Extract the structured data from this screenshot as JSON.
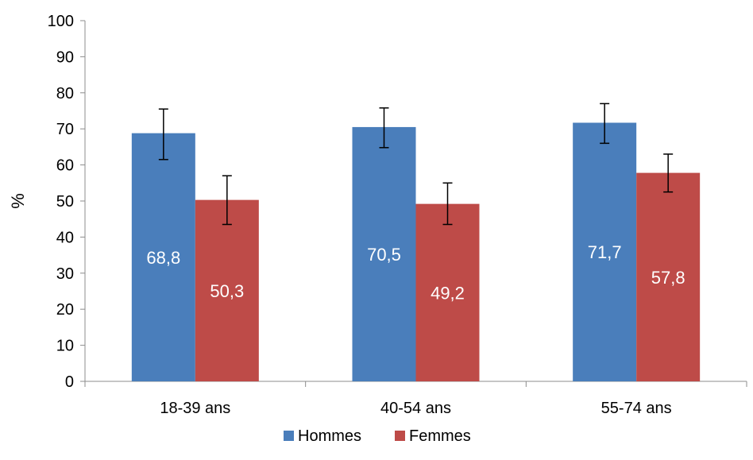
{
  "chart_data": {
    "type": "bar",
    "title": "",
    "xlabel": "",
    "ylabel": "%",
    "ylim": [
      0,
      100
    ],
    "yticks": [
      "0",
      "10",
      "20",
      "30",
      "40",
      "50",
      "60",
      "70",
      "80",
      "90",
      "100"
    ],
    "grid": false,
    "legend_position": "bottom",
    "categories": [
      "18-39 ans",
      "40-54 ans",
      "55-74 ans"
    ],
    "series": [
      {
        "name": "Hommes",
        "color": "#4a7ebb",
        "values": [
          68.8,
          70.5,
          71.7
        ],
        "labels": [
          "68,8",
          "70,5",
          "71,7"
        ],
        "error_low": [
          61.5,
          64.8,
          66.0
        ],
        "error_high": [
          75.5,
          75.8,
          77.0
        ]
      },
      {
        "name": "Femmes",
        "color": "#be4b48",
        "values": [
          50.3,
          49.2,
          57.8
        ],
        "labels": [
          "50,3",
          "49,2",
          "57,8"
        ],
        "error_low": [
          43.5,
          43.5,
          52.5
        ],
        "error_high": [
          57.0,
          55.0,
          63.0
        ]
      }
    ]
  }
}
